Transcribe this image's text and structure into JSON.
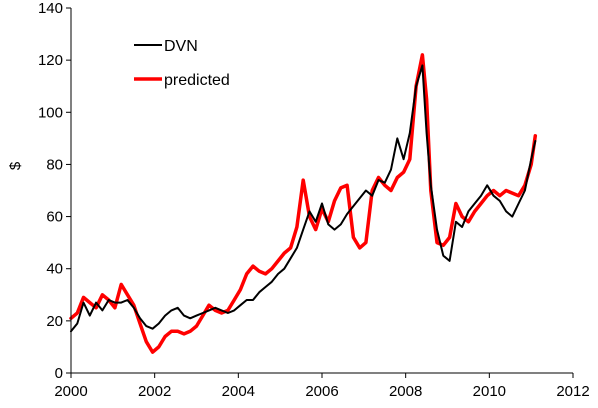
{
  "chart_data": {
    "type": "line",
    "title": "",
    "xlabel": "",
    "ylabel": "$",
    "xlim": [
      2000,
      2012
    ],
    "ylim": [
      0,
      140
    ],
    "x_ticks": [
      2000,
      2002,
      2004,
      2006,
      2008,
      2010,
      2012
    ],
    "y_ticks": [
      0,
      20,
      40,
      60,
      80,
      100,
      120,
      140
    ],
    "grid": false,
    "legend_position": "top-left",
    "series": [
      {
        "name": "DVN",
        "color": "#000000",
        "x": [
          2000.0,
          2000.15,
          2000.3,
          2000.45,
          2000.6,
          2000.75,
          2000.9,
          2001.05,
          2001.2,
          2001.35,
          2001.5,
          2001.65,
          2001.8,
          2001.95,
          2002.1,
          2002.25,
          2002.4,
          2002.55,
          2002.7,
          2002.85,
          2003.0,
          2003.15,
          2003.3,
          2003.45,
          2003.6,
          2003.75,
          2003.9,
          2004.05,
          2004.2,
          2004.35,
          2004.5,
          2004.65,
          2004.8,
          2004.95,
          2005.1,
          2005.25,
          2005.4,
          2005.55,
          2005.7,
          2005.85,
          2006.0,
          2006.15,
          2006.3,
          2006.45,
          2006.6,
          2006.75,
          2006.9,
          2007.05,
          2007.2,
          2007.35,
          2007.5,
          2007.65,
          2007.8,
          2007.95,
          2008.1,
          2008.25,
          2008.4,
          2008.5,
          2008.6,
          2008.75,
          2008.9,
          2009.05,
          2009.2,
          2009.35,
          2009.5,
          2009.65,
          2009.8,
          2009.95,
          2010.1,
          2010.25,
          2010.4,
          2010.55,
          2010.7,
          2010.85,
          2011.0,
          2011.1
        ],
        "values": [
          16,
          19,
          27,
          22,
          27,
          24,
          28,
          27,
          27,
          28,
          25,
          21,
          18,
          17,
          19,
          22,
          24,
          25,
          22,
          21,
          22,
          23,
          24,
          25,
          24,
          23,
          24,
          26,
          28,
          28,
          31,
          33,
          35,
          38,
          40,
          44,
          48,
          55,
          62,
          58,
          65,
          57,
          55,
          57,
          61,
          64,
          67,
          70,
          68,
          74,
          73,
          78,
          90,
          82,
          92,
          110,
          118,
          92,
          72,
          55,
          45,
          43,
          58,
          56,
          62,
          65,
          68,
          72,
          68,
          66,
          62,
          60,
          65,
          70,
          82,
          89
        ]
      },
      {
        "name": "predicted",
        "color": "#ff0000",
        "x": [
          2000.0,
          2000.15,
          2000.3,
          2000.45,
          2000.6,
          2000.75,
          2000.9,
          2001.05,
          2001.2,
          2001.35,
          2001.5,
          2001.65,
          2001.8,
          2001.95,
          2002.1,
          2002.25,
          2002.4,
          2002.55,
          2002.7,
          2002.85,
          2003.0,
          2003.15,
          2003.3,
          2003.45,
          2003.6,
          2003.75,
          2003.9,
          2004.05,
          2004.2,
          2004.35,
          2004.5,
          2004.65,
          2004.8,
          2004.95,
          2005.1,
          2005.25,
          2005.4,
          2005.55,
          2005.7,
          2005.85,
          2006.0,
          2006.15,
          2006.3,
          2006.45,
          2006.6,
          2006.75,
          2006.9,
          2007.05,
          2007.2,
          2007.35,
          2007.5,
          2007.65,
          2007.8,
          2007.95,
          2008.1,
          2008.25,
          2008.4,
          2008.5,
          2008.6,
          2008.75,
          2008.9,
          2009.05,
          2009.2,
          2009.35,
          2009.5,
          2009.65,
          2009.8,
          2009.95,
          2010.1,
          2010.25,
          2010.4,
          2010.55,
          2010.7,
          2010.85,
          2011.0,
          2011.1
        ],
        "values": [
          21,
          23,
          29,
          27,
          25,
          30,
          28,
          25,
          34,
          30,
          26,
          19,
          12,
          8,
          10,
          14,
          16,
          16,
          15,
          16,
          18,
          22,
          26,
          24,
          23,
          24,
          28,
          32,
          38,
          41,
          39,
          38,
          40,
          43,
          46,
          48,
          56,
          74,
          60,
          55,
          63,
          58,
          66,
          71,
          72,
          52,
          48,
          50,
          70,
          75,
          72,
          70,
          75,
          77,
          82,
          110,
          122,
          105,
          70,
          50,
          49,
          52,
          65,
          60,
          58,
          62,
          65,
          68,
          70,
          68,
          70,
          69,
          68,
          72,
          80,
          91
        ]
      }
    ]
  }
}
